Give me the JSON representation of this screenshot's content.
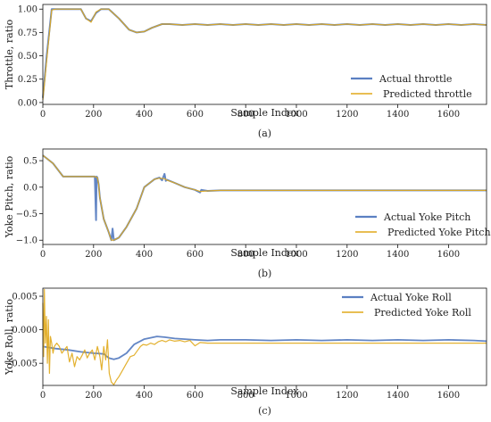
{
  "colors": {
    "actual": "#5b80c2",
    "predicted": "#e0a91a",
    "overlap": "#8b8f72"
  },
  "chart_data": [
    {
      "type": "line",
      "ylabel": "Throttle, ratio",
      "xlabel": "Sample Index",
      "caption": "(a)",
      "xlim": [
        0,
        1750
      ],
      "ylim": [
        -0.02,
        1.05
      ],
      "xticks": [
        0,
        200,
        400,
        600,
        800,
        1000,
        1200,
        1400,
        1600
      ],
      "yticks": [
        0.0,
        0.25,
        0.5,
        0.75,
        1.0
      ],
      "ytick_labels": [
        "0.00",
        "0.25",
        "0.50",
        "0.75",
        "1.00"
      ],
      "legend_position": "lower-right",
      "series": [
        {
          "name": "Actual throttle",
          "color": "#5b80c2",
          "x": [
            0,
            15,
            35,
            50,
            150,
            170,
            190,
            210,
            230,
            260,
            300,
            340,
            370,
            400,
            430,
            470,
            500,
            550,
            600,
            650,
            700,
            750,
            800,
            850,
            900,
            950,
            1000,
            1050,
            1100,
            1150,
            1200,
            1250,
            1300,
            1350,
            1400,
            1450,
            1500,
            1550,
            1600,
            1650,
            1700,
            1750
          ],
          "y": [
            0.05,
            0.5,
            1.0,
            1.0,
            1.0,
            0.9,
            0.87,
            0.96,
            1.0,
            1.0,
            0.9,
            0.78,
            0.75,
            0.76,
            0.8,
            0.84,
            0.84,
            0.83,
            0.84,
            0.83,
            0.84,
            0.83,
            0.84,
            0.83,
            0.84,
            0.83,
            0.84,
            0.83,
            0.84,
            0.83,
            0.84,
            0.83,
            0.84,
            0.83,
            0.84,
            0.83,
            0.84,
            0.83,
            0.84,
            0.83,
            0.84,
            0.83
          ]
        },
        {
          "name": "Predicted throttle",
          "color": "#e0a91a",
          "x": [
            0,
            15,
            35,
            50,
            150,
            170,
            190,
            210,
            230,
            260,
            300,
            340,
            370,
            400,
            430,
            470,
            500,
            550,
            600,
            650,
            700,
            750,
            800,
            850,
            900,
            950,
            1000,
            1050,
            1100,
            1150,
            1200,
            1250,
            1300,
            1350,
            1400,
            1450,
            1500,
            1550,
            1600,
            1650,
            1700,
            1750
          ],
          "y": [
            0.03,
            0.45,
            0.99,
            1.0,
            1.0,
            0.9,
            0.86,
            0.97,
            1.0,
            1.0,
            0.9,
            0.78,
            0.75,
            0.76,
            0.8,
            0.84,
            0.84,
            0.83,
            0.84,
            0.83,
            0.84,
            0.83,
            0.84,
            0.83,
            0.84,
            0.83,
            0.84,
            0.83,
            0.84,
            0.83,
            0.84,
            0.83,
            0.84,
            0.83,
            0.84,
            0.83,
            0.84,
            0.83,
            0.84,
            0.83,
            0.84,
            0.83
          ]
        }
      ]
    },
    {
      "type": "line",
      "ylabel": "Yoke Pitch, ratio",
      "xlabel": "Sample Index",
      "caption": "(b)",
      "xlim": [
        0,
        1750
      ],
      "ylim": [
        -1.08,
        0.72
      ],
      "xticks": [
        0,
        200,
        400,
        600,
        800,
        1000,
        1200,
        1400,
        1600
      ],
      "yticks": [
        -1.0,
        -0.5,
        0.0,
        0.5
      ],
      "ytick_labels": [
        "−1.0",
        "−0.5",
        "0.0",
        "0.5"
      ],
      "legend_position": "lower-right",
      "series": [
        {
          "name": "Actual Yoke Pitch",
          "color": "#5b80c2",
          "x": [
            0,
            40,
            80,
            150,
            205,
            210,
            212,
            215,
            220,
            225,
            240,
            260,
            270,
            275,
            280,
            300,
            330,
            370,
            400,
            440,
            460,
            470,
            480,
            485,
            490,
            520,
            560,
            600,
            620,
            625,
            650,
            700,
            800,
            900,
            1000,
            1100,
            1200,
            1300,
            1400,
            1500,
            1600,
            1700,
            1750
          ],
          "y": [
            0.6,
            0.45,
            0.2,
            0.2,
            0.2,
            -0.62,
            0.2,
            0.18,
            0.05,
            -0.2,
            -0.6,
            -0.85,
            -1.0,
            -0.78,
            -1.0,
            -0.95,
            -0.75,
            -0.4,
            0.0,
            0.15,
            0.18,
            0.13,
            0.25,
            0.12,
            0.14,
            0.08,
            0.0,
            -0.05,
            -0.1,
            -0.05,
            -0.07,
            -0.06,
            -0.06,
            -0.06,
            -0.06,
            -0.06,
            -0.06,
            -0.06,
            -0.06,
            -0.06,
            -0.06,
            -0.06,
            -0.06
          ]
        },
        {
          "name": "Predicted Yoke Pitch",
          "color": "#e0a91a",
          "x": [
            0,
            40,
            80,
            150,
            205,
            215,
            220,
            225,
            240,
            260,
            270,
            280,
            300,
            330,
            370,
            400,
            440,
            460,
            480,
            490,
            520,
            560,
            600,
            620,
            650,
            700,
            800,
            900,
            1000,
            1100,
            1200,
            1300,
            1400,
            1500,
            1600,
            1700,
            1750
          ],
          "y": [
            0.6,
            0.45,
            0.2,
            0.2,
            0.2,
            0.18,
            0.05,
            -0.2,
            -0.6,
            -0.85,
            -1.0,
            -1.0,
            -0.95,
            -0.75,
            -0.4,
            0.0,
            0.15,
            0.17,
            0.16,
            0.13,
            0.08,
            0.0,
            -0.05,
            -0.08,
            -0.07,
            -0.06,
            -0.06,
            -0.06,
            -0.06,
            -0.06,
            -0.06,
            -0.06,
            -0.06,
            -0.06,
            -0.06,
            -0.06,
            -0.06
          ]
        }
      ]
    },
    {
      "type": "line",
      "ylabel": "Yoke Roll, ratio",
      "xlabel": "Sample Index",
      "caption": "(c)",
      "xlim": [
        0,
        1750
      ],
      "ylim": [
        -0.0083,
        0.0062
      ],
      "xticks": [
        0,
        200,
        400,
        600,
        800,
        1000,
        1200,
        1400,
        1600
      ],
      "yticks": [
        -0.005,
        0.0,
        0.005
      ],
      "ytick_labels": [
        "−0.005",
        "0.000",
        "0.005"
      ],
      "legend_position": "upper-right",
      "series": [
        {
          "name": "Actual Yoke Roll",
          "color": "#5b80c2",
          "x": [
            0,
            50,
            100,
            150,
            200,
            240,
            260,
            280,
            300,
            330,
            360,
            400,
            450,
            480,
            520,
            560,
            600,
            650,
            700,
            800,
            900,
            1000,
            1100,
            1200,
            1300,
            1400,
            1500,
            1600,
            1700,
            1750
          ],
          "y": [
            -0.0025,
            -0.0028,
            -0.003,
            -0.0033,
            -0.0035,
            -0.0036,
            -0.0042,
            -0.0044,
            -0.0042,
            -0.0035,
            -0.0022,
            -0.0014,
            -0.001,
            -0.0011,
            -0.0013,
            -0.0014,
            -0.0015,
            -0.0016,
            -0.0015,
            -0.0015,
            -0.0016,
            -0.0015,
            -0.0016,
            -0.0015,
            -0.0016,
            -0.0015,
            -0.0016,
            -0.0015,
            -0.0016,
            -0.0017
          ]
        },
        {
          "name": "Predicted Yoke Roll",
          "color": "#e0a91a",
          "x": [
            0,
            3,
            6,
            10,
            14,
            18,
            22,
            26,
            30,
            35,
            40,
            45,
            55,
            65,
            75,
            85,
            95,
            105,
            115,
            125,
            135,
            145,
            155,
            165,
            175,
            185,
            195,
            205,
            215,
            225,
            232,
            240,
            248,
            255,
            262,
            270,
            280,
            290,
            300,
            315,
            330,
            345,
            360,
            375,
            385,
            395,
            410,
            425,
            440,
            455,
            470,
            485,
            500,
            520,
            540,
            560,
            580,
            600,
            620,
            650,
            700,
            800,
            900,
            1000,
            1100,
            1200,
            1300,
            1400,
            1500,
            1600,
            1700,
            1750
          ],
          "y": [
            0.004,
            -0.004,
            0.006,
            -0.002,
            0.002,
            -0.005,
            0.0015,
            -0.0065,
            -0.001,
            -0.002,
            -0.0035,
            -0.0025,
            -0.002,
            -0.0025,
            -0.0035,
            -0.003,
            -0.0025,
            -0.0048,
            -0.0035,
            -0.0055,
            -0.004,
            -0.0045,
            -0.0038,
            -0.003,
            -0.0042,
            -0.0035,
            -0.003,
            -0.0045,
            -0.0025,
            -0.004,
            -0.006,
            -0.0025,
            -0.0045,
            -0.0015,
            -0.0065,
            -0.0078,
            -0.0082,
            -0.0075,
            -0.007,
            -0.006,
            -0.005,
            -0.004,
            -0.0038,
            -0.003,
            -0.0025,
            -0.0022,
            -0.0023,
            -0.002,
            -0.0022,
            -0.0018,
            -0.0016,
            -0.0018,
            -0.0015,
            -0.0017,
            -0.0016,
            -0.0018,
            -0.0016,
            -0.0024,
            -0.0019,
            -0.002,
            -0.002,
            -0.002,
            -0.002,
            -0.002,
            -0.002,
            -0.002,
            -0.002,
            -0.002,
            -0.002,
            -0.002,
            -0.002,
            -0.002
          ]
        }
      ]
    }
  ]
}
